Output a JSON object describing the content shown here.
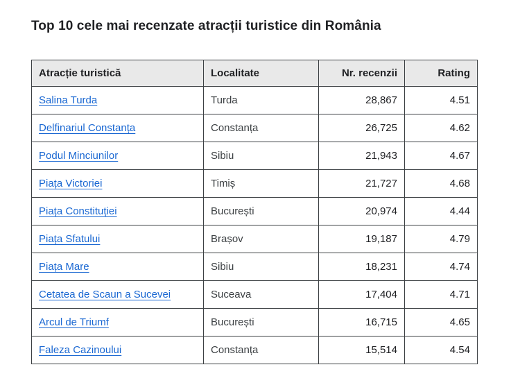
{
  "page": {
    "title": "Top 10 cele mai recenzate atracții turistice din România"
  },
  "colors": {
    "link": "#1967d2",
    "header_background": "#e9e9e9",
    "border": "#3c4043",
    "title_text": "#202124"
  },
  "chart_data": {
    "type": "table",
    "title": "Top 10 cele mai recenzate atracții turistice din România",
    "columns": [
      "Atracție turistică",
      "Localitate",
      "Nr. recenzii",
      "Rating"
    ],
    "rows": [
      {
        "attraction": "Salina Turda",
        "locality": "Turda",
        "reviews": "28,867",
        "rating": "4.51"
      },
      {
        "attraction": "Delfinariul Constanța",
        "locality": "Constanța",
        "reviews": "26,725",
        "rating": "4.62"
      },
      {
        "attraction": "Podul Minciunilor",
        "locality": "Sibiu",
        "reviews": "21,943",
        "rating": "4.67"
      },
      {
        "attraction": "Piața Victoriei",
        "locality": "Timiș",
        "reviews": "21,727",
        "rating": "4.68"
      },
      {
        "attraction": "Piața Constituției",
        "locality": "București",
        "reviews": "20,974",
        "rating": "4.44"
      },
      {
        "attraction": "Piața Sfatului",
        "locality": "Brașov",
        "reviews": "19,187",
        "rating": "4.79"
      },
      {
        "attraction": "Piața Mare",
        "locality": "Sibiu",
        "reviews": "18,231",
        "rating": "4.74"
      },
      {
        "attraction": "Cetatea de Scaun a Sucevei",
        "locality": "Suceava",
        "reviews": "17,404",
        "rating": "4.71"
      },
      {
        "attraction": "Arcul de Triumf",
        "locality": "București",
        "reviews": "16,715",
        "rating": "4.65"
      },
      {
        "attraction": "Faleza Cazinoului",
        "locality": "Constanța",
        "reviews": "15,514",
        "rating": "4.54"
      }
    ],
    "reviews_numeric": [
      28867,
      26725,
      21943,
      21727,
      20974,
      19187,
      18231,
      17404,
      16715,
      15514
    ],
    "ratings_numeric": [
      4.51,
      4.62,
      4.67,
      4.68,
      4.44,
      4.79,
      4.74,
      4.71,
      4.65,
      4.54
    ]
  }
}
